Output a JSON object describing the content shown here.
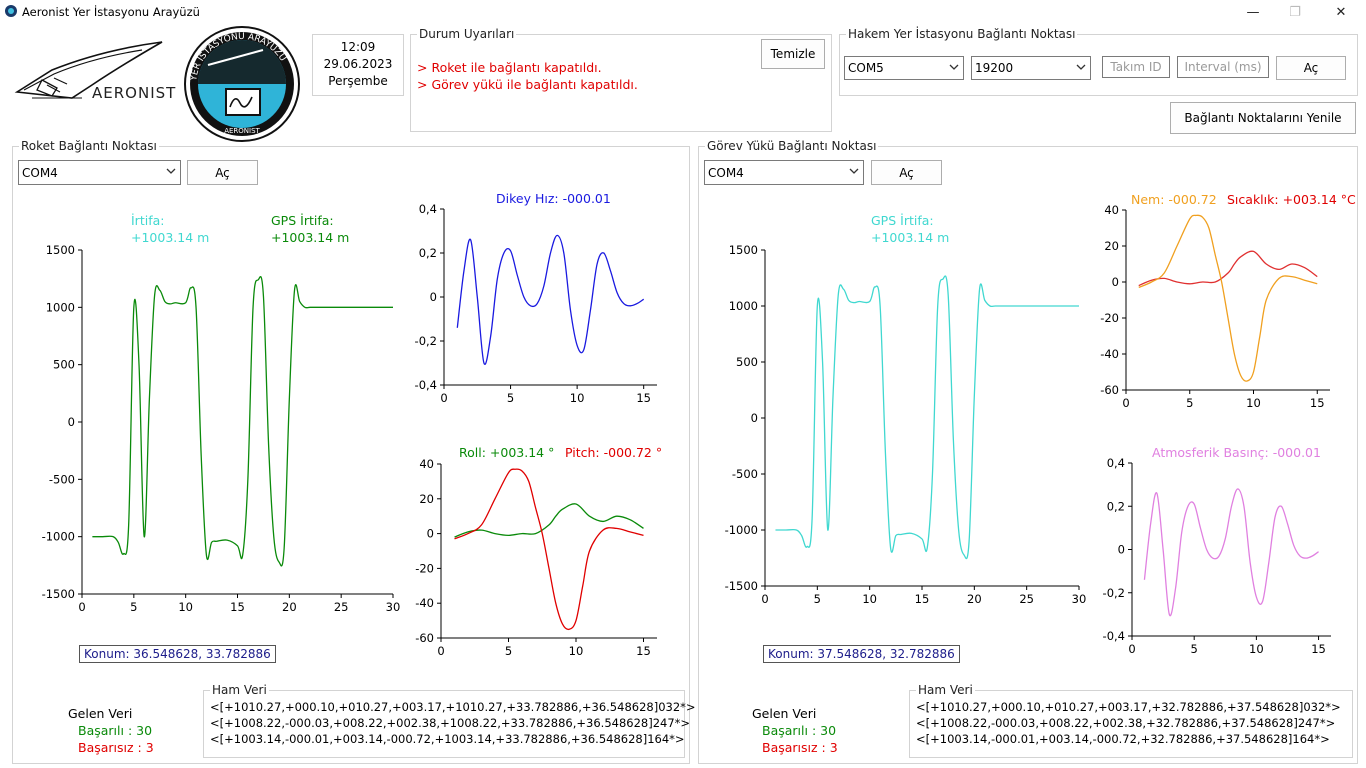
{
  "window": {
    "title": "Aeronist Yer İstasyonu Arayüzü",
    "minimize": "—",
    "maximize": "❐",
    "close": "✕"
  },
  "logo": {
    "brand": "AERONIST",
    "badge_top": "YER İSTASYONU ARAYÜZÜ",
    "badge_bottom": "AERONIST"
  },
  "clock": {
    "time": "12:09",
    "date": "29.06.2023",
    "day": "Perşembe"
  },
  "alerts": {
    "title": "Durum Uyarıları",
    "clear_label": "Temizle",
    "messages": [
      "> Roket ile bağlantı kapatıldı.",
      "> Görev yükü ile bağlantı kapatıldı."
    ]
  },
  "referee": {
    "title": "Hakem Yer İstasyonu Bağlantı Noktası",
    "port": "COM5",
    "baud": "19200",
    "team_placeholder": "Takım ID",
    "interval_placeholder": "Interval (ms)",
    "open_label": "Aç"
  },
  "refresh_label": "Bağlantı Noktalarını Yenile",
  "rocket": {
    "title": "Roket Bağlantı Noktası",
    "port": "COM4",
    "open_label": "Aç",
    "alt_label": "İrtifa:",
    "alt_value": "+1003.14 m",
    "gps_label": "GPS İrtifa:",
    "gps_value": "+1003.14 m",
    "vspeed_label": "Dikey Hız:",
    "vspeed_value": "-000.01",
    "roll_label": "Roll:",
    "roll_value": "+003.14 °",
    "pitch_label": "Pitch:",
    "pitch_value": "-000.72 °",
    "location_label": "Konum:",
    "location_value": "36.548628, 33.782886",
    "incoming_label": "Gelen Veri",
    "success_label": "Başarılı : 30",
    "fail_label": "Başarısız : 3",
    "raw_title": "Ham Veri",
    "raw_lines": [
      "<[+1010.27,+000.10,+010.27,+003.17,+1010.27,+33.782886,+36.548628]032*>",
      "<[+1008.22,-000.03,+008.22,+002.38,+1008.22,+33.782886,+36.548628]247*>",
      "<[+1003.14,-000.01,+003.14,-000.72,+1003.14,+33.782886,+36.548628]164*>"
    ]
  },
  "payload": {
    "title": "Görev Yükü Bağlantı Noktası",
    "port": "COM4",
    "open_label": "Aç",
    "gps_label": "GPS İrtifa:",
    "gps_value": "+1003.14 m",
    "hum_label": "Nem:",
    "hum_value": "-000.72",
    "temp_label": "Sıcaklık:",
    "temp_value": "+003.14 °C",
    "press_label": "Atmosferik Basınç:",
    "press_value": "-000.01",
    "location_label": "Konum:",
    "location_value": "37.548628, 32.782886",
    "incoming_label": "Gelen Veri",
    "success_label": "Başarılı : 30",
    "fail_label": "Başarısız : 3",
    "raw_title": "Ham Veri",
    "raw_lines": [
      "<[+1010.27,+000.10,+010.27,+003.17,+32.782886,+37.548628]032*>",
      "<[+1008.22,-000.03,+008.22,+002.38,+32.782886,+37.548628]247*>",
      "<[+1003.14,-000.01,+003.14,-000.72,+32.782886,+37.548628]164*>"
    ]
  },
  "colors": {
    "green": "#0a8a0a",
    "turquoise": "#40d8d0",
    "blue": "#1a1ae0",
    "red": "#e00000",
    "orange": "#f0a020",
    "violet": "#e080e0"
  },
  "chart_data": [
    {
      "id": "rocket_alt",
      "type": "line",
      "xlim": [
        0,
        30
      ],
      "ylim": [
        -1500,
        1500
      ],
      "xticks": [
        0,
        5,
        10,
        15,
        20,
        25,
        30
      ],
      "yticks": [
        -1500,
        -1000,
        -500,
        0,
        500,
        1000,
        1500
      ],
      "series": [
        {
          "color": "#0a8a0a",
          "x": [
            1,
            2,
            3,
            3.5,
            4,
            4.5,
            5,
            5.5,
            6,
            6.5,
            7,
            7.5,
            8,
            8.5,
            9,
            10,
            10.5,
            11,
            11.5,
            12,
            12.5,
            13,
            14,
            15,
            15.5,
            16,
            16.5,
            17,
            17.5,
            18,
            18.5,
            19,
            19.5,
            20,
            20.5,
            21,
            21.5,
            22,
            23,
            25,
            27,
            30
          ],
          "y": [
            -1000,
            -1000,
            -1000,
            -1050,
            -1150,
            -900,
            1000,
            500,
            -1000,
            200,
            1100,
            1150,
            1050,
            1030,
            1040,
            1040,
            1170,
            1000,
            -300,
            -1160,
            -1050,
            -1040,
            -1030,
            -1080,
            -1160,
            -500,
            1000,
            1240,
            1100,
            -200,
            -1000,
            -1220,
            -1100,
            200,
            1150,
            1050,
            1000,
            1000,
            1000,
            1000,
            1000,
            1000
          ]
        }
      ]
    },
    {
      "id": "vspeed",
      "type": "line",
      "xlim": [
        0,
        16
      ],
      "ylim": [
        -0.4,
        0.4
      ],
      "xticks": [
        0,
        5,
        10,
        15
      ],
      "yticks": [
        -0.4,
        -0.2,
        0,
        0.2,
        0.4
      ],
      "series": [
        {
          "color": "#1a1ae0",
          "x": [
            1,
            1.5,
            2,
            2.5,
            3,
            3.5,
            4,
            4.5,
            5,
            5.5,
            6,
            6.5,
            7,
            7.5,
            8,
            8.5,
            9,
            9.5,
            10,
            10.5,
            11,
            11.5,
            12,
            12.5,
            13,
            13.5,
            14,
            14.5,
            15
          ],
          "y": [
            -0.14,
            0.12,
            0.26,
            0.0,
            -0.3,
            -0.18,
            0.08,
            0.2,
            0.21,
            0.1,
            0.0,
            -0.04,
            -0.03,
            0.05,
            0.2,
            0.28,
            0.2,
            -0.06,
            -0.22,
            -0.24,
            -0.06,
            0.15,
            0.2,
            0.12,
            0.02,
            -0.03,
            -0.04,
            -0.03,
            -0.01
          ]
        }
      ]
    },
    {
      "id": "roll_pitch",
      "type": "line",
      "xlim": [
        0,
        16
      ],
      "ylim": [
        -60,
        40
      ],
      "xticks": [
        0,
        5,
        10,
        15
      ],
      "yticks": [
        -60,
        -40,
        -20,
        0,
        20,
        40
      ],
      "series": [
        {
          "color": "#0a8a0a",
          "x": [
            1,
            2,
            3,
            4,
            5,
            6,
            7,
            8,
            8.5,
            9,
            10,
            11,
            12,
            13,
            14,
            15
          ],
          "y": [
            -2,
            1,
            2,
            0,
            -1,
            0,
            0,
            5,
            10,
            14,
            17,
            10,
            7,
            10,
            8,
            3
          ]
        },
        {
          "color": "#e00000",
          "x": [
            1,
            2,
            3,
            4,
            5,
            5.5,
            6,
            6.5,
            7,
            7.5,
            8,
            8.5,
            9,
            9.5,
            10,
            10.5,
            11,
            12,
            13,
            14,
            15
          ],
          "y": [
            -3,
            0,
            5,
            20,
            35,
            37,
            36,
            30,
            15,
            0,
            -20,
            -40,
            -52,
            -55,
            -50,
            -30,
            -10,
            2,
            3,
            1,
            -1
          ]
        }
      ]
    },
    {
      "id": "payload_alt",
      "type": "line",
      "xlim": [
        0,
        30
      ],
      "ylim": [
        -1500,
        1500
      ],
      "xticks": [
        0,
        5,
        10,
        15,
        20,
        25,
        30
      ],
      "yticks": [
        -1500,
        -1000,
        -500,
        0,
        500,
        1000,
        1500
      ],
      "series": [
        {
          "color": "#40d8d0",
          "x": [
            1,
            2,
            3,
            3.5,
            4,
            4.5,
            5,
            5.5,
            6,
            6.5,
            7,
            7.5,
            8,
            8.5,
            9,
            10,
            10.5,
            11,
            11.5,
            12,
            12.5,
            13,
            14,
            15,
            15.5,
            16,
            16.5,
            17,
            17.5,
            18,
            18.5,
            19,
            19.5,
            20,
            20.5,
            21,
            21.5,
            22,
            23,
            25,
            27,
            30
          ],
          "y": [
            -1000,
            -1000,
            -1000,
            -1050,
            -1150,
            -900,
            1000,
            500,
            -1000,
            200,
            1100,
            1150,
            1050,
            1030,
            1040,
            1040,
            1170,
            1000,
            -300,
            -1160,
            -1050,
            -1040,
            -1030,
            -1080,
            -1160,
            -500,
            1000,
            1240,
            1100,
            -200,
            -1000,
            -1220,
            -1100,
            200,
            1150,
            1050,
            1000,
            1000,
            1000,
            1000,
            1000,
            1000
          ]
        }
      ]
    },
    {
      "id": "hum_temp",
      "type": "line",
      "xlim": [
        0,
        16
      ],
      "ylim": [
        -60,
        40
      ],
      "xticks": [
        0,
        5,
        10,
        15
      ],
      "yticks": [
        -60,
        -40,
        -20,
        0,
        20,
        40
      ],
      "series": [
        {
          "color": "#e03030",
          "x": [
            1,
            2,
            3,
            4,
            5,
            6,
            7,
            8,
            8.5,
            9,
            10,
            11,
            12,
            13,
            14,
            15
          ],
          "y": [
            -2,
            1,
            2,
            0,
            -1,
            0,
            0,
            5,
            10,
            14,
            17,
            10,
            7,
            10,
            8,
            3
          ]
        },
        {
          "color": "#f0a020",
          "x": [
            1,
            2,
            3,
            4,
            5,
            5.5,
            6,
            6.5,
            7,
            7.5,
            8,
            8.5,
            9,
            9.5,
            10,
            10.5,
            11,
            12,
            13,
            14,
            15
          ],
          "y": [
            -3,
            0,
            5,
            20,
            35,
            37,
            36,
            30,
            15,
            0,
            -20,
            -40,
            -52,
            -55,
            -50,
            -30,
            -10,
            2,
            3,
            1,
            -1
          ]
        }
      ]
    },
    {
      "id": "pressure",
      "type": "line",
      "xlim": [
        0,
        16
      ],
      "ylim": [
        -0.4,
        0.4
      ],
      "xticks": [
        0,
        5,
        10,
        15
      ],
      "yticks": [
        -0.4,
        -0.2,
        0,
        0.2,
        0.4
      ],
      "series": [
        {
          "color": "#e080e0",
          "x": [
            1,
            1.5,
            2,
            2.5,
            3,
            3.5,
            4,
            4.5,
            5,
            5.5,
            6,
            6.5,
            7,
            7.5,
            8,
            8.5,
            9,
            9.5,
            10,
            10.5,
            11,
            11.5,
            12,
            12.5,
            13,
            13.5,
            14,
            14.5,
            15
          ],
          "y": [
            -0.14,
            0.12,
            0.26,
            0.0,
            -0.3,
            -0.18,
            0.08,
            0.2,
            0.21,
            0.1,
            0.0,
            -0.04,
            -0.03,
            0.05,
            0.2,
            0.28,
            0.2,
            -0.06,
            -0.22,
            -0.24,
            -0.06,
            0.15,
            0.2,
            0.12,
            0.02,
            -0.03,
            -0.04,
            -0.03,
            -0.01
          ]
        }
      ]
    }
  ]
}
